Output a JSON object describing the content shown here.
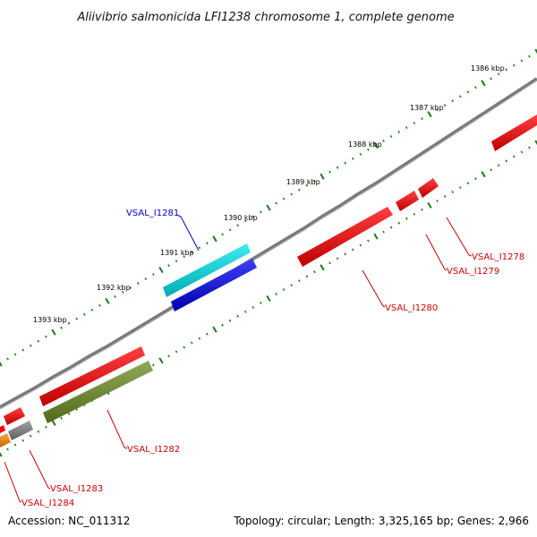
{
  "title": "Aliivibrio salmonicida LFI1238 chromosome 1, complete genome",
  "footer": {
    "accession": "Accession: NC_011312",
    "summary": "Topology: circular; Length: 3,325,165 bp; Genes: 2,966"
  },
  "ticks": [
    "1386 kbp",
    "1387 kbp",
    "1388 kbp",
    "1389 kbp",
    "1390 kbp",
    "1391 kbp",
    "1392 kbp",
    "1393 kbp"
  ],
  "genes": [
    {
      "id": "VSAL_I1278",
      "color": "#ff0000",
      "label_color": "#cc0000",
      "labeled": true
    },
    {
      "id": "VSAL_I1279",
      "color": "#ff0000",
      "label_color": "#cc0000",
      "labeled": true
    },
    {
      "id": "VSAL_I1280",
      "color": "#ff0000",
      "label_color": "#cc0000",
      "labeled": true
    },
    {
      "id": "VSAL_I1281",
      "color": "#00e5ee",
      "label_color": "#0000cc",
      "labeled": true
    },
    {
      "id": "VSAL_I1282",
      "color": "#6b8e23",
      "label_color": "#cc0000",
      "labeled": true
    },
    {
      "id": "VSAL_I1283",
      "color": "#808080",
      "label_color": "#cc0000",
      "labeled": true
    },
    {
      "id": "VSAL_I1284",
      "color": "#ff8c00",
      "label_color": "#cc0000",
      "labeled": true
    },
    {
      "id": "gene-blue",
      "color": "#0000ee",
      "labeled": false
    },
    {
      "id": "gene-red-inner-a",
      "color": "#ff0000",
      "labeled": false
    },
    {
      "id": "gene-red-outer-b",
      "color": "#ff0000",
      "labeled": false
    },
    {
      "id": "gene-red-outer-c",
      "color": "#ff0000",
      "labeled": false
    }
  ],
  "backbone_color": "#808080",
  "tick_color": "#1a7a1a"
}
